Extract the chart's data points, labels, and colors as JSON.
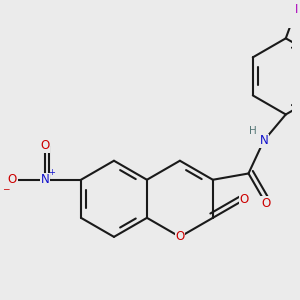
{
  "bg_color": "#ebebeb",
  "bond_color": "#1a1a1a",
  "lw": 1.5,
  "atom_colors": {
    "O": "#cc0000",
    "N": "#1010cc",
    "H": "#557777",
    "I": "#aa00bb",
    "C": "#1a1a1a"
  },
  "fs": 8.5
}
